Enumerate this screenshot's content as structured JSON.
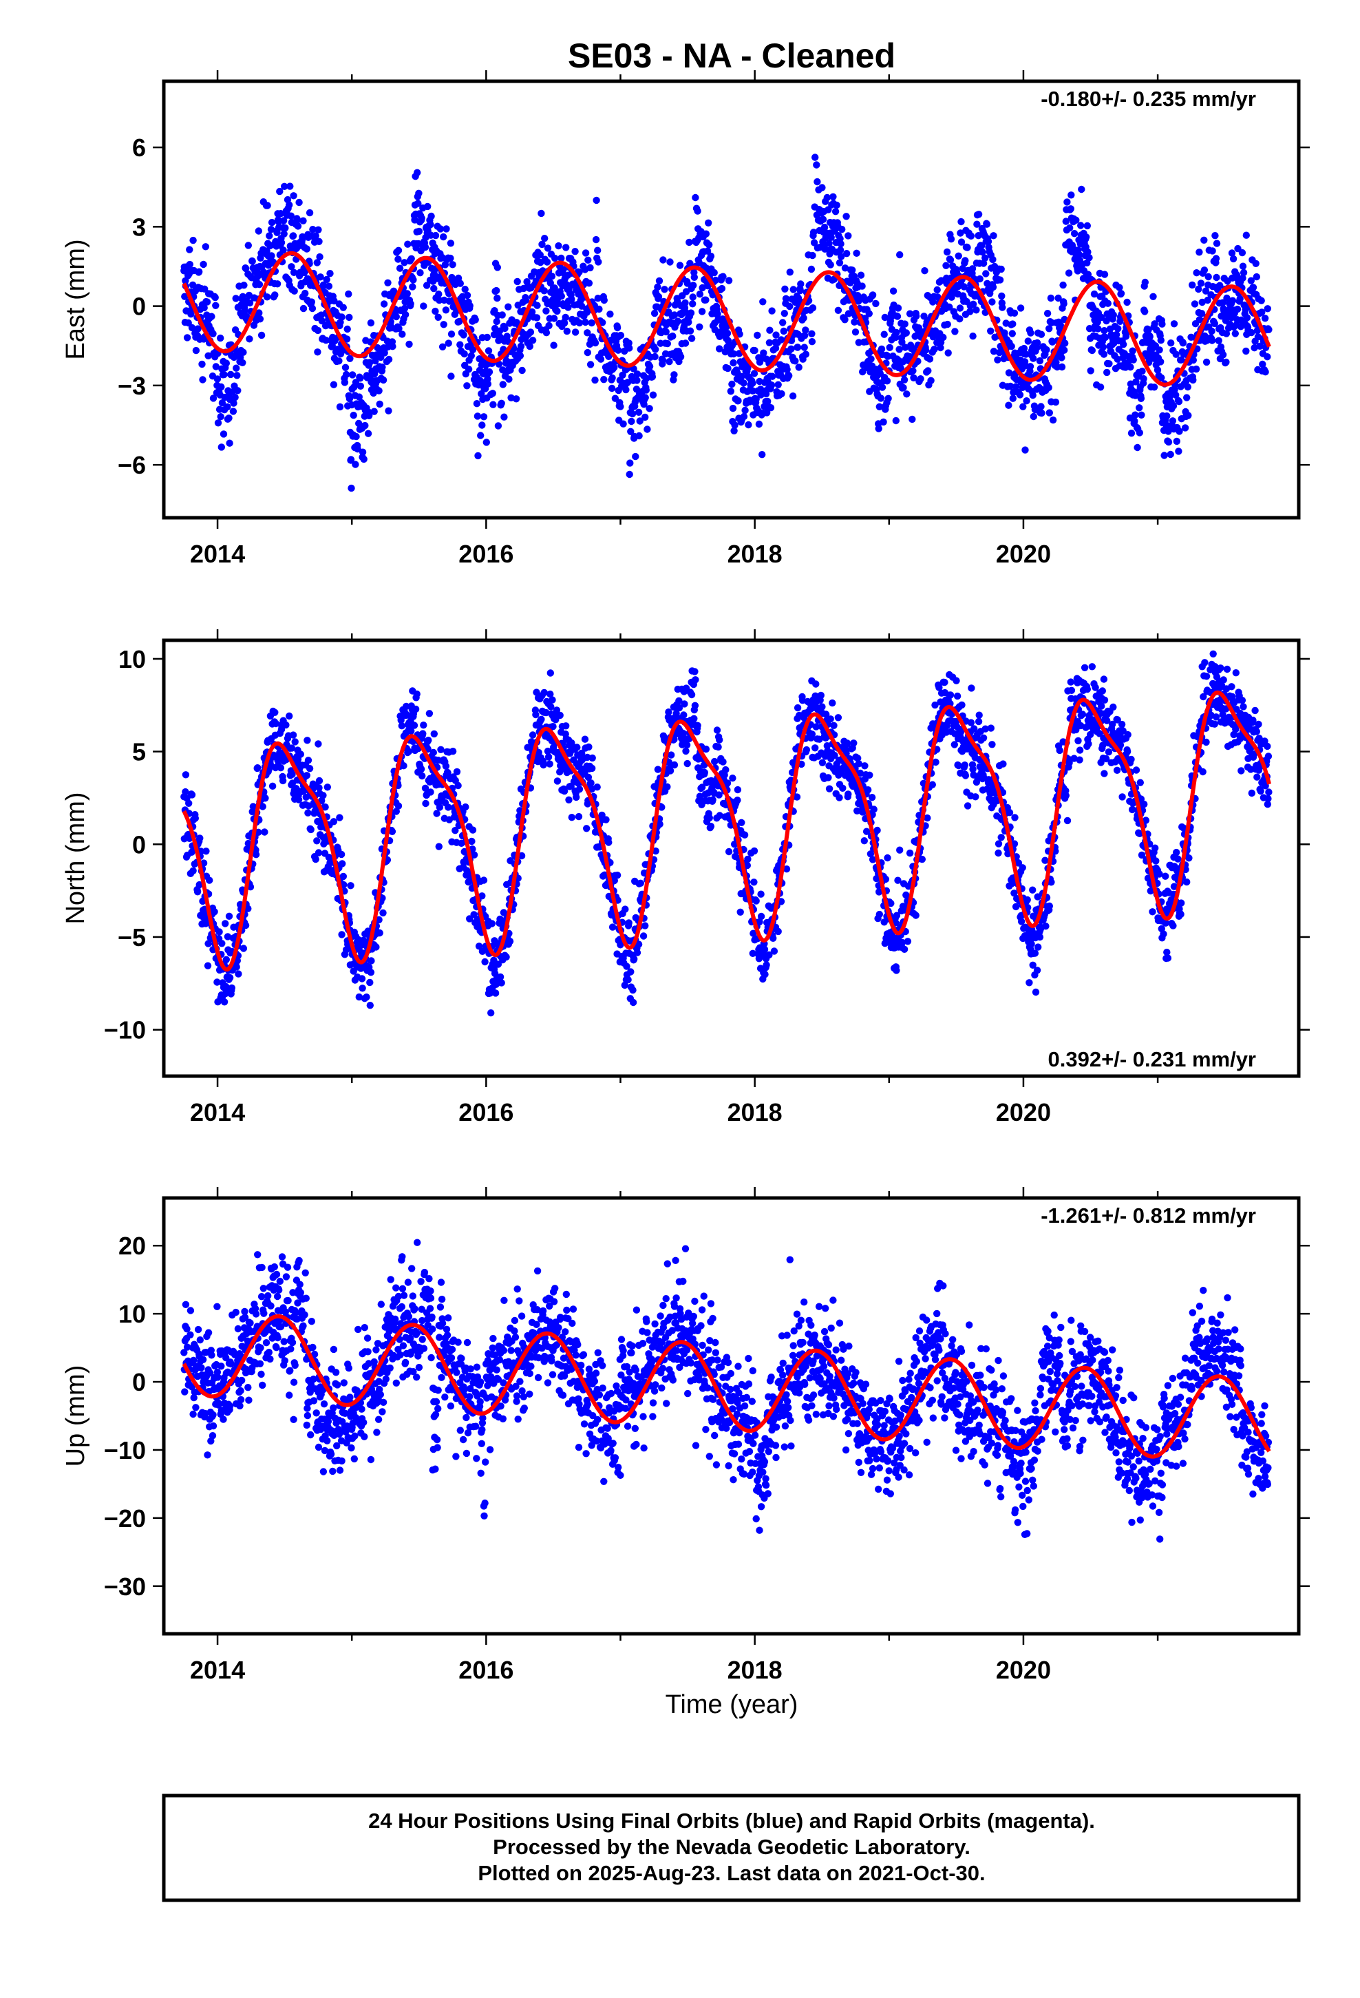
{
  "title": "SE03  - NA - Cleaned",
  "xlabel": "Time (year)",
  "caption": [
    "24 Hour Positions Using Final Orbits (blue) and Rapid Orbits (magenta).",
    "Processed by the Nevada Geodetic Laboratory.",
    "Plotted on 2025-Aug-23. Last data on 2021-Oct-30."
  ],
  "colors": {
    "points": "#0000ff",
    "model": "#ff0000",
    "axis": "#000000"
  },
  "chart_data": [
    {
      "type": "scatter",
      "ylabel": "East (mm)",
      "rate_label": "-0.180+/- 0.235 mm/yr",
      "rate_position": "top-right",
      "xlim": [
        2013.6,
        2022.05
      ],
      "ylim": [
        -8.0,
        8.5
      ],
      "xticks": [
        2014,
        2016,
        2018,
        2020
      ],
      "xtick_labels": [
        "2014",
        "2016",
        "2018",
        "2020"
      ],
      "yticks": [
        -6,
        -3,
        0,
        3,
        6
      ],
      "ytick_labels": [
        "−6",
        "−3",
        "0",
        "3",
        "6"
      ],
      "series": [
        {
          "role": "observations",
          "x_start": 2013.75,
          "x_end": 2021.83,
          "points_per_year": 365,
          "noise_sd": 1.0,
          "cluster_sd": 1.35,
          "offset": 0.2,
          "trend": -0.18,
          "annual_amp": 2.0,
          "annual_phase": -1.9,
          "semiannual_amp": 0.0,
          "semiannual_phase": 0.0
        },
        {
          "role": "model",
          "x_start": 2013.75,
          "x_end": 2021.83,
          "offset": 0.2,
          "trend": -0.18,
          "annual_amp": 1.9,
          "annual_phase": -1.9,
          "semiannual_amp": 0.0,
          "semiannual_phase": 0.0
        }
      ]
    },
    {
      "type": "scatter",
      "ylabel": "North (mm)",
      "rate_label": "0.392+/- 0.231 mm/yr",
      "rate_position": "bottom-right",
      "xlim": [
        2013.6,
        2022.05
      ],
      "ylim": [
        -12.5,
        11.0
      ],
      "xticks": [
        2014,
        2016,
        2018,
        2020
      ],
      "xtick_labels": [
        "2014",
        "2016",
        "2018",
        "2020"
      ],
      "yticks": [
        -10,
        -5,
        0,
        5,
        10
      ],
      "ytick_labels": [
        "−10",
        "−5",
        "0",
        "5",
        "10"
      ],
      "series": [
        {
          "role": "observations",
          "x_start": 2013.75,
          "x_end": 2021.83,
          "points_per_year": 365,
          "noise_sd": 1.1,
          "cluster_sd": 0.9,
          "offset": 0.1,
          "trend": 0.392,
          "annual_amp": 5.5,
          "annual_phase": -1.8,
          "semiannual_amp": 1.6,
          "semiannual_phase": -2.8
        },
        {
          "role": "model",
          "x_start": 2013.75,
          "x_end": 2021.83,
          "offset": 0.1,
          "trend": 0.392,
          "annual_amp": 5.5,
          "annual_phase": -1.8,
          "semiannual_amp": 1.6,
          "semiannual_phase": -2.8
        }
      ]
    },
    {
      "type": "scatter",
      "ylabel": "Up (mm)",
      "rate_label": "-1.261+/- 0.812 mm/yr",
      "rate_position": "top-right",
      "xlim": [
        2013.6,
        2022.05
      ],
      "ylim": [
        -37.0,
        27.0
      ],
      "xticks": [
        2014,
        2016,
        2018,
        2020
      ],
      "xtick_labels": [
        "2014",
        "2016",
        "2018",
        "2020"
      ],
      "yticks": [
        -30,
        -20,
        -10,
        0,
        10,
        20
      ],
      "ytick_labels": [
        "−30",
        "−20",
        "−10",
        "0",
        "10",
        "20"
      ],
      "series": [
        {
          "role": "observations",
          "x_start": 2013.75,
          "x_end": 2021.83,
          "points_per_year": 365,
          "noise_sd": 4.0,
          "cluster_sd": 4.0,
          "offset": 4.0,
          "trend": -1.261,
          "annual_amp": 6.5,
          "annual_phase": -1.3,
          "semiannual_amp": 0.0,
          "semiannual_phase": 0.0
        },
        {
          "role": "model",
          "x_start": 2013.75,
          "x_end": 2021.83,
          "offset": 4.0,
          "trend": -1.261,
          "annual_amp": 6.2,
          "annual_phase": -1.3,
          "semiannual_amp": 0.0,
          "semiannual_phase": 0.0
        }
      ]
    }
  ]
}
